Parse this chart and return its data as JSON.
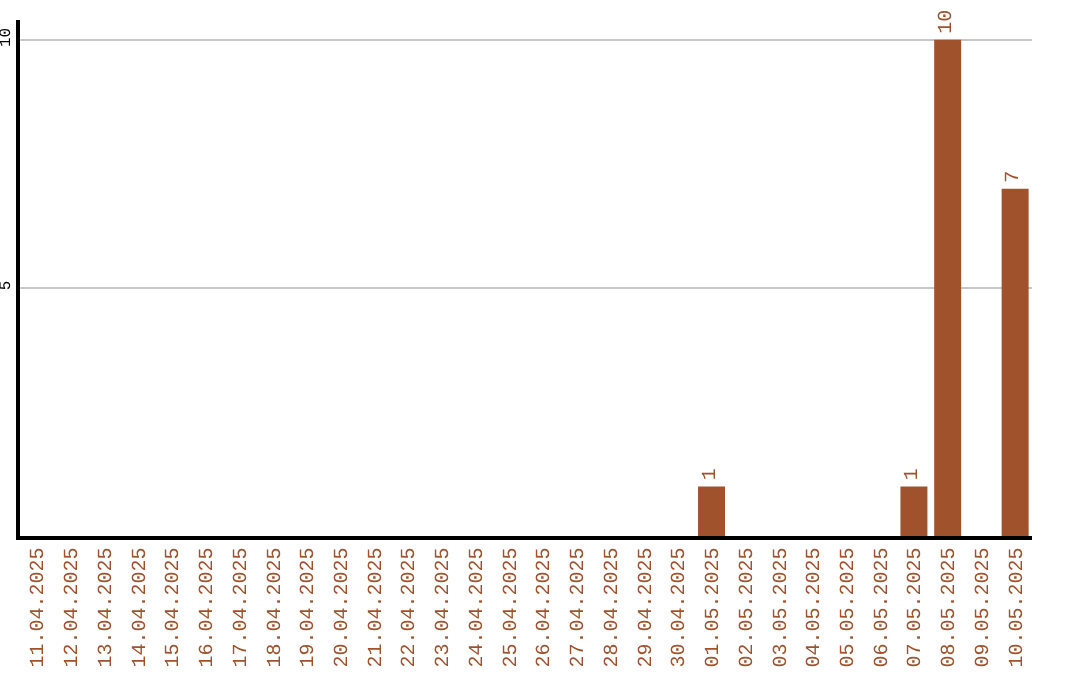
{
  "chart_data": {
    "type": "bar",
    "categories": [
      "11.04.2025",
      "12.04.2025",
      "13.04.2025",
      "14.04.2025",
      "15.04.2025",
      "16.04.2025",
      "17.04.2025",
      "18.04.2025",
      "19.04.2025",
      "20.04.2025",
      "21.04.2025",
      "22.04.2025",
      "23.04.2025",
      "24.04.2025",
      "25.04.2025",
      "26.04.2025",
      "27.04.2025",
      "28.04.2025",
      "29.04.2025",
      "30.04.2025",
      "01.05.2025",
      "02.05.2025",
      "03.05.2025",
      "04.05.2025",
      "05.05.2025",
      "06.05.2025",
      "07.05.2025",
      "08.05.2025",
      "09.05.2025",
      "10.05.2025"
    ],
    "values": [
      0,
      0,
      0,
      0,
      0,
      0,
      0,
      0,
      0,
      0,
      0,
      0,
      0,
      0,
      0,
      0,
      0,
      0,
      0,
      0,
      1,
      0,
      0,
      0,
      0,
      0,
      1,
      10,
      0,
      7
    ],
    "value_labels": [
      null,
      null,
      null,
      null,
      null,
      null,
      null,
      null,
      null,
      null,
      null,
      null,
      null,
      null,
      null,
      null,
      null,
      null,
      null,
      null,
      "1",
      null,
      null,
      null,
      null,
      null,
      "1",
      "10",
      null,
      "7"
    ],
    "color": "#a0522d",
    "ylim": [
      0,
      10.4
    ],
    "yticks": [
      5,
      10
    ],
    "grid": "y"
  }
}
